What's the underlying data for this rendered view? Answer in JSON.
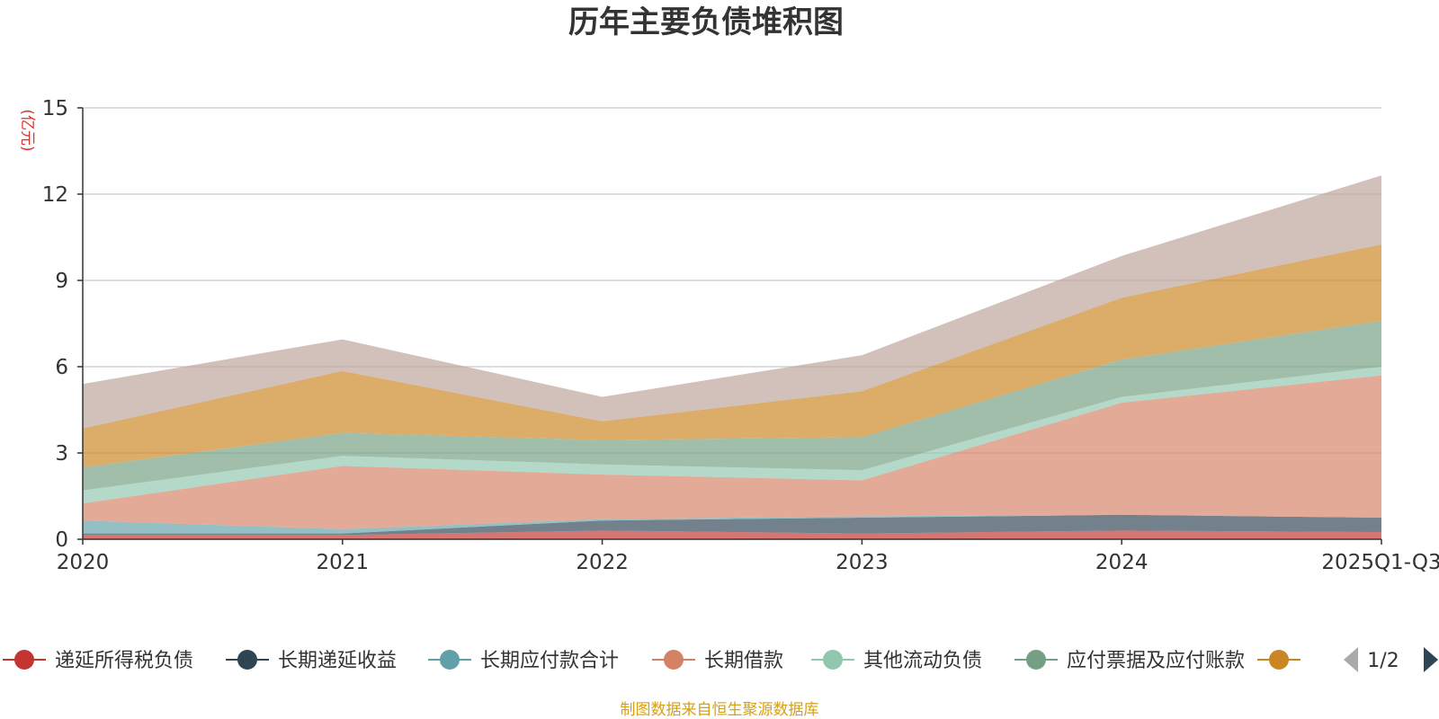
{
  "chart_data": {
    "type": "area",
    "stacked": true,
    "title": "历年主要负债堆积图",
    "ylabel": "(亿元)",
    "xlabel": "",
    "categories": [
      "2020",
      "2021",
      "2022",
      "2023",
      "2024",
      "2025Q1-Q3"
    ],
    "ylim": [
      0,
      15
    ],
    "yticks": [
      0,
      3,
      6,
      9,
      12,
      15
    ],
    "grid": true,
    "series": [
      {
        "name": "递延所得税负债",
        "color": "#c23531",
        "values": [
          0.15,
          0.15,
          0.3,
          0.2,
          0.3,
          0.25
        ]
      },
      {
        "name": "长期递延收益",
        "color": "#2f4554",
        "values": [
          0.05,
          0.05,
          0.35,
          0.55,
          0.55,
          0.5
        ]
      },
      {
        "name": "长期应付款合计",
        "color": "#61a0a8",
        "values": [
          0.45,
          0.15,
          0.05,
          0.05,
          0.0,
          0.0
        ]
      },
      {
        "name": "长期借款",
        "color": "#d48265",
        "values": [
          0.6,
          2.2,
          1.55,
          1.25,
          3.9,
          4.95
        ]
      },
      {
        "name": "其他流动负债",
        "color": "#91c7ae",
        "values": [
          0.45,
          0.35,
          0.35,
          0.35,
          0.2,
          0.3
        ]
      },
      {
        "name": "应付票据及应付账款",
        "color": "#749f83",
        "values": [
          0.8,
          0.8,
          0.85,
          1.15,
          1.3,
          1.6
        ]
      },
      {
        "name": "",
        "color": "#ca8622",
        "values": [
          1.35,
          2.15,
          0.65,
          1.6,
          2.15,
          2.65
        ]
      },
      {
        "name": "",
        "color": "#bda29a",
        "values": [
          1.55,
          1.1,
          0.85,
          1.25,
          1.45,
          2.4
        ]
      }
    ],
    "legend": {
      "position": "bottom",
      "page": "1/2"
    },
    "source": "制图数据来自恒生聚源数据库"
  }
}
